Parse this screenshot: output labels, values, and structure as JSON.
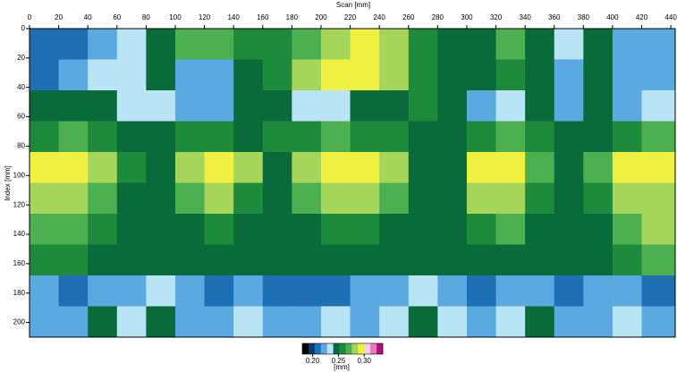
{
  "chart_data": {
    "type": "heatmap",
    "x_label": "Scan  [mm]",
    "y_label": "Index  [mm]",
    "x": [
      10,
      30,
      50,
      70,
      90,
      110,
      130,
      150,
      170,
      190,
      210,
      230,
      250,
      270,
      290,
      310,
      330,
      350,
      370,
      390,
      410,
      430
    ],
    "y": [
      10.5,
      31.5,
      52.5,
      73.5,
      94.5,
      115.5,
      136.5,
      157.5,
      178.5,
      199.5
    ],
    "values": [
      [
        0.215,
        0.215,
        0.22,
        0.23,
        0.25,
        0.27,
        0.27,
        0.26,
        0.26,
        0.27,
        0.28,
        0.29,
        0.28,
        0.26,
        0.25,
        0.25,
        0.27,
        0.25,
        0.23,
        0.25,
        0.22,
        0.22
      ],
      [
        0.215,
        0.22,
        0.23,
        0.23,
        0.24,
        0.22,
        0.22,
        0.25,
        0.26,
        0.28,
        0.29,
        0.29,
        0.28,
        0.26,
        0.25,
        0.24,
        0.26,
        0.25,
        0.22,
        0.24,
        0.22,
        0.22
      ],
      [
        0.24,
        0.25,
        0.25,
        0.23,
        0.23,
        0.22,
        0.22,
        0.25,
        0.25,
        0.23,
        0.23,
        0.24,
        0.24,
        0.26,
        0.25,
        0.22,
        0.23,
        0.24,
        0.22,
        0.24,
        0.22,
        0.23
      ],
      [
        0.26,
        0.27,
        0.26,
        0.25,
        0.25,
        0.26,
        0.26,
        0.25,
        0.26,
        0.26,
        0.27,
        0.26,
        0.26,
        0.25,
        0.25,
        0.26,
        0.27,
        0.26,
        0.25,
        0.25,
        0.26,
        0.27
      ],
      [
        0.29,
        0.29,
        0.28,
        0.26,
        0.25,
        0.28,
        0.29,
        0.28,
        0.25,
        0.28,
        0.29,
        0.29,
        0.28,
        0.25,
        0.25,
        0.29,
        0.29,
        0.27,
        0.25,
        0.27,
        0.29,
        0.29
      ],
      [
        0.28,
        0.28,
        0.27,
        0.25,
        0.245,
        0.27,
        0.28,
        0.26,
        0.25,
        0.27,
        0.28,
        0.28,
        0.27,
        0.245,
        0.245,
        0.28,
        0.28,
        0.26,
        0.245,
        0.26,
        0.28,
        0.28
      ],
      [
        0.27,
        0.27,
        0.26,
        0.245,
        0.245,
        0.25,
        0.26,
        0.25,
        0.245,
        0.25,
        0.26,
        0.26,
        0.25,
        0.245,
        0.24,
        0.26,
        0.27,
        0.25,
        0.245,
        0.25,
        0.27,
        0.28
      ],
      [
        0.26,
        0.26,
        0.25,
        0.245,
        0.24,
        0.245,
        0.245,
        0.24,
        0.24,
        0.245,
        0.245,
        0.25,
        0.245,
        0.24,
        0.24,
        0.245,
        0.25,
        0.245,
        0.24,
        0.245,
        0.26,
        0.27
      ],
      [
        0.22,
        0.215,
        0.22,
        0.22,
        0.23,
        0.22,
        0.215,
        0.22,
        0.215,
        0.215,
        0.215,
        0.22,
        0.22,
        0.23,
        0.22,
        0.215,
        0.22,
        0.22,
        0.215,
        0.22,
        0.22,
        0.215
      ],
      [
        0.22,
        0.22,
        0.24,
        0.23,
        0.24,
        0.22,
        0.22,
        0.23,
        0.22,
        0.22,
        0.23,
        0.22,
        0.23,
        0.24,
        0.23,
        0.22,
        0.23,
        0.24,
        0.22,
        0.22,
        0.23,
        0.22
      ]
    ],
    "xlim": [
      0,
      443
    ],
    "ylim": [
      0,
      210
    ],
    "xticks": [
      0,
      20,
      40,
      60,
      80,
      100,
      120,
      140,
      160,
      180,
      200,
      220,
      240,
      260,
      280,
      300,
      320,
      340,
      360,
      380,
      400,
      420,
      440
    ],
    "yticks": [
      0,
      20,
      40,
      60,
      80,
      100,
      120,
      140,
      160,
      180,
      200
    ],
    "colorscale": [
      "#000000",
      "#0d3a6e",
      "#1f6fb5",
      "#5aa9e0",
      "#b8e4f5",
      "#0a6b3a",
      "#1e8a3c",
      "#4caf50",
      "#a5d65a",
      "#f0f040",
      "#f7d0e8",
      "#e878c0",
      "#b0107a"
    ],
    "clim": [
      0.18,
      0.336
    ],
    "colorbar_label": "[mm]",
    "colorbar_ticks": [
      {
        "value": 0.2,
        "label": "0.20"
      },
      {
        "value": 0.25,
        "label": "0.25"
      },
      {
        "value": 0.3,
        "label": "0.30"
      }
    ]
  }
}
